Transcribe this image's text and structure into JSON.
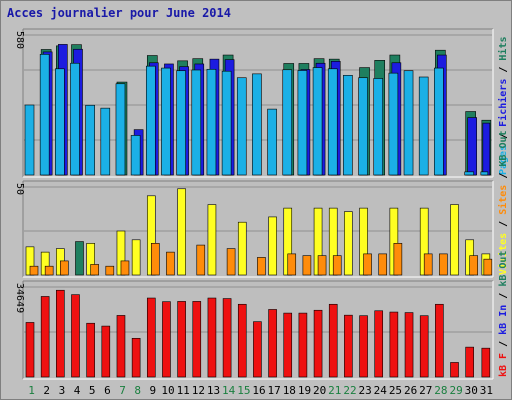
{
  "title": "Acces journalier pour June 2014",
  "colors": {
    "background": "#c0c0c0",
    "panel": "#bebebe",
    "gridline": "#909090",
    "title": "#1919a8",
    "pages": "#1bb0e6",
    "fichiers": "#1c1ce0",
    "hits": "#1f7f5f",
    "visites": "#ffff22",
    "sites": "#ff8c0a",
    "kbf": "#ee1111",
    "weekend_label": "#1a7f3f",
    "weekday_label": "#000000"
  },
  "chart_data": [
    {
      "type": "bar",
      "name_key": "hits-panel",
      "ymax_label": "580",
      "ylim": [
        0,
        580
      ],
      "legend": [
        {
          "label": "Pages",
          "color": "#1bb0e6"
        },
        {
          "label": "Fichiers",
          "color": "#1c1ce0"
        },
        {
          "label": "Hits",
          "color": "#1f7f5f"
        }
      ],
      "series": [
        {
          "name": "Hits",
          "values": [
            0,
            520,
            535,
            540,
            0,
            0,
            385,
            0,
            495,
            0,
            473,
            482,
            0,
            497,
            0,
            0,
            0,
            462,
            462,
            482,
            480,
            0,
            445,
            475,
            497,
            0,
            0,
            517,
            0,
            263
          ]
        },
        {
          "name": "Fichiers",
          "values": [
            0,
            510,
            541,
            521,
            0,
            0,
            0,
            188,
            465,
            460,
            449,
            460,
            480,
            478,
            0,
            0,
            0,
            0,
            437,
            463,
            471,
            0,
            0,
            0,
            465,
            0,
            0,
            497,
            0,
            238
          ]
        },
        {
          "name": "Pages",
          "values": [
            290,
            500,
            440,
            463,
            289,
            277,
            378,
            164,
            451,
            443,
            432,
            435,
            438,
            430,
            403,
            419,
            273,
            436,
            433,
            445,
            440,
            413,
            403,
            400,
            422,
            432,
            406,
            443,
            0,
            13
          ]
        }
      ],
      "extra": {
        "day31_pages": 227
      }
    },
    {
      "type": "bar",
      "name_key": "visits-panel",
      "ymax_label": "50",
      "ylim": [
        0,
        50
      ],
      "legend": [
        {
          "label": "Visites",
          "color": "#ffff22"
        },
        {
          "label": "Sites",
          "color": "#ff8c0a"
        },
        {
          "label": "KB Out",
          "color": "#1f7f5f"
        }
      ],
      "series": [
        {
          "name": "Visites",
          "values": [
            16,
            13,
            15,
            0,
            18,
            0,
            25,
            20,
            45,
            0,
            49,
            0,
            40,
            0,
            30,
            0,
            33,
            38,
            0,
            38,
            38,
            36,
            38,
            0,
            38,
            0,
            38,
            0,
            40,
            20
          ]
        },
        {
          "name": "Sites",
          "values": [
            5,
            5,
            8,
            0,
            6,
            5,
            8,
            0,
            18,
            13,
            0,
            17,
            0,
            15,
            0,
            10,
            0,
            12,
            11,
            11,
            11,
            0,
            12,
            12,
            18,
            0,
            12,
            12,
            0,
            11
          ]
        },
        {
          "name": "KB Out",
          "values": [
            0,
            0,
            0,
            19,
            0,
            0,
            0,
            0,
            0,
            0,
            0,
            0,
            0,
            0,
            0,
            0,
            0,
            0,
            0,
            0,
            0,
            0,
            0,
            0,
            0,
            0,
            0,
            0,
            0,
            0
          ]
        }
      ],
      "extra": {
        "day31_visits": 12,
        "day31_sites": 9
      }
    },
    {
      "type": "bar",
      "name_key": "kb-panel",
      "ymax_label": "34649",
      "ylim": [
        0,
        34649
      ],
      "legend": [
        {
          "label": "kB F",
          "color": "#ee1111"
        },
        {
          "label": "kB In",
          "color": "#1c1ce0"
        },
        {
          "label": "kB Out",
          "color": "#1f7f5f"
        }
      ],
      "series": [
        {
          "name": "kB F",
          "values": [
            21000,
            31000,
            33400,
            31700,
            20700,
            19600,
            23700,
            14900,
            30400,
            29000,
            29100,
            29100,
            30400,
            30200,
            0,
            21300,
            0,
            24600,
            24600,
            25700,
            28000,
            23800,
            23600,
            0,
            25000,
            0,
            23600,
            28000,
            0,
            11500
          ]
        },
        {
          "name": "kB F (b)",
          "values": [
            0,
            0,
            0,
            0,
            0,
            0,
            0,
            0,
            0,
            0,
            0,
            0,
            0,
            0,
            28000,
            0,
            26000,
            0,
            0,
            0,
            0,
            0,
            0,
            25500,
            0,
            24800,
            0,
            0,
            5600,
            0
          ]
        }
      ],
      "extra": {
        "day31_kbf": 11100
      }
    }
  ],
  "x_labels": [
    {
      "label": "1",
      "weekend": true
    },
    {
      "label": "2",
      "weekend": false
    },
    {
      "label": "3",
      "weekend": false
    },
    {
      "label": "4",
      "weekend": false
    },
    {
      "label": "5",
      "weekend": false
    },
    {
      "label": "6",
      "weekend": false
    },
    {
      "label": "7",
      "weekend": true
    },
    {
      "label": "8",
      "weekend": true
    },
    {
      "label": "9",
      "weekend": false
    },
    {
      "label": "10",
      "weekend": false
    },
    {
      "label": "11",
      "weekend": false
    },
    {
      "label": "12",
      "weekend": false
    },
    {
      "label": "13",
      "weekend": false
    },
    {
      "label": "14",
      "weekend": true
    },
    {
      "label": "15",
      "weekend": true
    },
    {
      "label": "16",
      "weekend": false
    },
    {
      "label": "17",
      "weekend": false
    },
    {
      "label": "18",
      "weekend": false
    },
    {
      "label": "19",
      "weekend": false
    },
    {
      "label": "20",
      "weekend": false
    },
    {
      "label": "21",
      "weekend": true
    },
    {
      "label": "22",
      "weekend": true
    },
    {
      "label": "23",
      "weekend": false
    },
    {
      "label": "24",
      "weekend": false
    },
    {
      "label": "25",
      "weekend": false
    },
    {
      "label": "26",
      "weekend": false
    },
    {
      "label": "27",
      "weekend": false
    },
    {
      "label": "28",
      "weekend": true
    },
    {
      "label": "29",
      "weekend": true
    },
    {
      "label": "30",
      "weekend": false
    },
    {
      "label": "31",
      "weekend": false
    }
  ]
}
